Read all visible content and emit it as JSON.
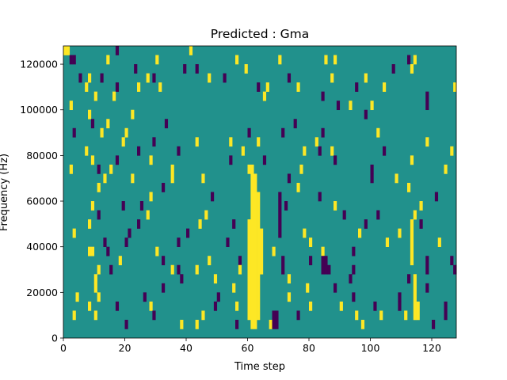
{
  "chart_data": {
    "type": "heatmap",
    "title": "Predicted : Gma",
    "xlabel": "Time step",
    "ylabel": "Frequency (Hz)",
    "xlim": [
      0,
      128
    ],
    "ylim": [
      0,
      128000
    ],
    "x_ticks": [
      0,
      20,
      40,
      60,
      80,
      100,
      120
    ],
    "y_ticks": [
      0,
      20000,
      40000,
      60000,
      80000,
      100000,
      120000
    ],
    "x_tick_labels": [
      "0",
      "20",
      "40",
      "60",
      "80",
      "100",
      "120"
    ],
    "y_tick_labels": [
      "0",
      "20000",
      "40000",
      "60000",
      "80000",
      "100000",
      "120000"
    ],
    "colormap": "viridis",
    "value_range": [
      -1,
      1
    ],
    "colors": {
      "low": "#440154",
      "mid": "#21918c",
      "high": "#fde725"
    },
    "background_value": 0,
    "freq_bin_hz": 4000,
    "cells": [
      {
        "t": 0,
        "f": 124000,
        "v": 1
      },
      {
        "t": 1,
        "f": 124000,
        "v": 1
      },
      {
        "t": 2,
        "f": 120000,
        "v": -1
      },
      {
        "t": 3,
        "f": 120000,
        "v": -1
      },
      {
        "t": 17,
        "f": 124000,
        "v": -1
      },
      {
        "t": 41,
        "f": 124000,
        "v": 1
      },
      {
        "t": 14,
        "f": 120000,
        "v": 1
      },
      {
        "t": 30,
        "f": 120000,
        "v": 1
      },
      {
        "t": 56,
        "f": 120000,
        "v": 1
      },
      {
        "t": 70,
        "f": 120000,
        "v": 1
      },
      {
        "t": 85,
        "f": 120000,
        "v": 1
      },
      {
        "t": 88,
        "f": 120000,
        "v": 1
      },
      {
        "t": 112,
        "f": 120000,
        "v": -1
      },
      {
        "t": 114,
        "f": 120000,
        "v": 1
      },
      {
        "t": 23,
        "f": 116000,
        "v": -1
      },
      {
        "t": 39,
        "f": 116000,
        "v": -1
      },
      {
        "t": 43,
        "f": 116000,
        "v": -1
      },
      {
        "t": 59,
        "f": 116000,
        "v": 1
      },
      {
        "t": 107,
        "f": 116000,
        "v": -1
      },
      {
        "t": 113,
        "f": 116000,
        "v": 1
      },
      {
        "t": 5,
        "f": 112000,
        "v": -1
      },
      {
        "t": 8,
        "f": 112000,
        "v": 1
      },
      {
        "t": 12,
        "f": 112000,
        "v": -1
      },
      {
        "t": 27,
        "f": 112000,
        "v": 1
      },
      {
        "t": 29,
        "f": 112000,
        "v": -1
      },
      {
        "t": 47,
        "f": 112000,
        "v": 1
      },
      {
        "t": 52,
        "f": 112000,
        "v": -1
      },
      {
        "t": 73,
        "f": 112000,
        "v": -1
      },
      {
        "t": 87,
        "f": 112000,
        "v": 1
      },
      {
        "t": 98,
        "f": 112000,
        "v": 1
      },
      {
        "t": 7,
        "f": 108000,
        "v": 1
      },
      {
        "t": 17,
        "f": 108000,
        "v": -1
      },
      {
        "t": 24,
        "f": 108000,
        "v": 1
      },
      {
        "t": 31,
        "f": 108000,
        "v": 1
      },
      {
        "t": 63,
        "f": 108000,
        "v": -1
      },
      {
        "t": 66,
        "f": 108000,
        "v": 1
      },
      {
        "t": 76,
        "f": 108000,
        "v": 1
      },
      {
        "t": 95,
        "f": 108000,
        "v": -1
      },
      {
        "t": 104,
        "f": 108000,
        "v": 1
      },
      {
        "t": 127,
        "f": 108000,
        "v": 1
      },
      {
        "t": 10,
        "f": 104000,
        "v": 1
      },
      {
        "t": 16,
        "f": 104000,
        "v": 1
      },
      {
        "t": 65,
        "f": 104000,
        "v": 1
      },
      {
        "t": 84,
        "f": 104000,
        "v": -1
      },
      {
        "t": 118,
        "f": 104000,
        "v": -1
      },
      {
        "t": 2,
        "f": 100000,
        "v": 1
      },
      {
        "t": 89,
        "f": 100000,
        "v": -1
      },
      {
        "t": 93,
        "f": 100000,
        "v": 1
      },
      {
        "t": 100,
        "f": 100000,
        "v": 1
      },
      {
        "t": 118,
        "f": 100000,
        "v": -1
      },
      {
        "t": 8,
        "f": 96000,
        "v": 1
      },
      {
        "t": 22,
        "f": 96000,
        "v": 1
      },
      {
        "t": 98,
        "f": 96000,
        "v": -1
      },
      {
        "t": 9,
        "f": 92000,
        "v": -1
      },
      {
        "t": 14,
        "f": 92000,
        "v": 1
      },
      {
        "t": 33,
        "f": 92000,
        "v": -1
      },
      {
        "t": 75,
        "f": 92000,
        "v": -1
      },
      {
        "t": 3,
        "f": 88000,
        "v": -1
      },
      {
        "t": 12,
        "f": 88000,
        "v": 1
      },
      {
        "t": 20,
        "f": 88000,
        "v": 1
      },
      {
        "t": 60,
        "f": 88000,
        "v": -1
      },
      {
        "t": 71,
        "f": 88000,
        "v": -1
      },
      {
        "t": 84,
        "f": 88000,
        "v": -1
      },
      {
        "t": 102,
        "f": 88000,
        "v": 1
      },
      {
        "t": 19,
        "f": 84000,
        "v": 1
      },
      {
        "t": 29,
        "f": 84000,
        "v": -1
      },
      {
        "t": 43,
        "f": 84000,
        "v": 1
      },
      {
        "t": 54,
        "f": 84000,
        "v": 1
      },
      {
        "t": 63,
        "f": 84000,
        "v": 1
      },
      {
        "t": 82,
        "f": 84000,
        "v": 1
      },
      {
        "t": 118,
        "f": 84000,
        "v": 1
      },
      {
        "t": 7,
        "f": 80000,
        "v": 1
      },
      {
        "t": 24,
        "f": 80000,
        "v": -1
      },
      {
        "t": 37,
        "f": 80000,
        "v": -1
      },
      {
        "t": 58,
        "f": 80000,
        "v": 1
      },
      {
        "t": 78,
        "f": 80000,
        "v": 1
      },
      {
        "t": 83,
        "f": 80000,
        "v": -1
      },
      {
        "t": 87,
        "f": 80000,
        "v": 1
      },
      {
        "t": 104,
        "f": 80000,
        "v": -1
      },
      {
        "t": 126,
        "f": 80000,
        "v": 1
      },
      {
        "t": 9,
        "f": 76000,
        "v": 1
      },
      {
        "t": 17,
        "f": 76000,
        "v": -1
      },
      {
        "t": 28,
        "f": 76000,
        "v": 1
      },
      {
        "t": 54,
        "f": 76000,
        "v": -1
      },
      {
        "t": 65,
        "f": 76000,
        "v": -1
      },
      {
        "t": 88,
        "f": 76000,
        "v": -1
      },
      {
        "t": 113,
        "f": 76000,
        "v": 1
      },
      {
        "t": 2,
        "f": 72000,
        "v": 1
      },
      {
        "t": 11,
        "f": 72000,
        "v": -1
      },
      {
        "t": 15,
        "f": 72000,
        "v": 1
      },
      {
        "t": 35,
        "f": 72000,
        "v": 1
      },
      {
        "t": 60,
        "f": 72000,
        "v": 1
      },
      {
        "t": 77,
        "f": 72000,
        "v": 1
      },
      {
        "t": 100,
        "f": 72000,
        "v": -1
      },
      {
        "t": 124,
        "f": 72000,
        "v": 1
      },
      {
        "t": 13,
        "f": 68000,
        "v": 1
      },
      {
        "t": 22,
        "f": 68000,
        "v": 1
      },
      {
        "t": 35,
        "f": 68000,
        "v": 1
      },
      {
        "t": 45,
        "f": 68000,
        "v": 1
      },
      {
        "t": 73,
        "f": 68000,
        "v": -1
      },
      {
        "t": 100,
        "f": 68000,
        "v": -1
      },
      {
        "t": 108,
        "f": 68000,
        "v": 1
      },
      {
        "t": 11,
        "f": 64000,
        "v": 1
      },
      {
        "t": 32,
        "f": 64000,
        "v": -1
      },
      {
        "t": 76,
        "f": 64000,
        "v": 1
      },
      {
        "t": 112,
        "f": 64000,
        "v": 1
      },
      {
        "t": 28,
        "f": 60000,
        "v": 1
      },
      {
        "t": 48,
        "f": 60000,
        "v": -1
      },
      {
        "t": 83,
        "f": 60000,
        "v": -1
      },
      {
        "t": 121,
        "f": 60000,
        "v": -1
      },
      {
        "t": 9,
        "f": 56000,
        "v": 1
      },
      {
        "t": 19,
        "f": 56000,
        "v": -1
      },
      {
        "t": 25,
        "f": 56000,
        "v": -1
      },
      {
        "t": 72,
        "f": 56000,
        "v": -1
      },
      {
        "t": 88,
        "f": 56000,
        "v": 1
      },
      {
        "t": 116,
        "f": 56000,
        "v": 1
      },
      {
        "t": 11,
        "f": 52000,
        "v": -1
      },
      {
        "t": 27,
        "f": 52000,
        "v": 1
      },
      {
        "t": 46,
        "f": 52000,
        "v": 1
      },
      {
        "t": 91,
        "f": 52000,
        "v": -1
      },
      {
        "t": 102,
        "f": 52000,
        "v": -1
      },
      {
        "t": 114,
        "f": 52000,
        "v": 1
      },
      {
        "t": 8,
        "f": 48000,
        "v": 1
      },
      {
        "t": 24,
        "f": 48000,
        "v": -1
      },
      {
        "t": 44,
        "f": 48000,
        "v": 1
      },
      {
        "t": 55,
        "f": 48000,
        "v": -1
      },
      {
        "t": 98,
        "f": 48000,
        "v": -1
      },
      {
        "t": 116,
        "f": 48000,
        "v": -1
      },
      {
        "t": 3,
        "f": 44000,
        "v": 1
      },
      {
        "t": 21,
        "f": 44000,
        "v": -1
      },
      {
        "t": 40,
        "f": 44000,
        "v": -1
      },
      {
        "t": 78,
        "f": 44000,
        "v": 1
      },
      {
        "t": 96,
        "f": 44000,
        "v": 1
      },
      {
        "t": 109,
        "f": 44000,
        "v": 1
      },
      {
        "t": 13,
        "f": 40000,
        "v": -1
      },
      {
        "t": 20,
        "f": 40000,
        "v": -1
      },
      {
        "t": 37,
        "f": 40000,
        "v": -1
      },
      {
        "t": 53,
        "f": 40000,
        "v": -1
      },
      {
        "t": 80,
        "f": 40000,
        "v": 1
      },
      {
        "t": 105,
        "f": 40000,
        "v": 1
      },
      {
        "t": 122,
        "f": 40000,
        "v": 1
      },
      {
        "t": 8,
        "f": 36000,
        "v": 1
      },
      {
        "t": 9,
        "f": 36000,
        "v": 1
      },
      {
        "t": 14,
        "f": 36000,
        "v": -1
      },
      {
        "t": 30,
        "f": 36000,
        "v": 1
      },
      {
        "t": 68,
        "f": 36000,
        "v": 1
      },
      {
        "t": 84,
        "f": 36000,
        "v": 1
      },
      {
        "t": 94,
        "f": 36000,
        "v": -1
      },
      {
        "t": 18,
        "f": 32000,
        "v": 1
      },
      {
        "t": 32,
        "f": 32000,
        "v": -1
      },
      {
        "t": 47,
        "f": 32000,
        "v": 1
      },
      {
        "t": 57,
        "f": 32000,
        "v": -1
      },
      {
        "t": 80,
        "f": 32000,
        "v": -1
      },
      {
        "t": 126,
        "f": 32000,
        "v": -1
      },
      {
        "t": 11,
        "f": 28000,
        "v": 1
      },
      {
        "t": 15,
        "f": 28000,
        "v": -1
      },
      {
        "t": 35,
        "f": 28000,
        "v": 1
      },
      {
        "t": 37,
        "f": 28000,
        "v": -1
      },
      {
        "t": 43,
        "f": 28000,
        "v": 1
      },
      {
        "t": 57,
        "f": 28000,
        "v": 1
      },
      {
        "t": 86,
        "f": 28000,
        "v": -1
      },
      {
        "t": 94,
        "f": 28000,
        "v": -1
      },
      {
        "t": 127,
        "f": 28000,
        "v": -1
      },
      {
        "t": 10,
        "f": 24000,
        "v": 1
      },
      {
        "t": 38,
        "f": 24000,
        "v": -1
      },
      {
        "t": 49,
        "f": 24000,
        "v": 1
      },
      {
        "t": 73,
        "f": 24000,
        "v": 1
      },
      {
        "t": 93,
        "f": 24000,
        "v": -1
      },
      {
        "t": 112,
        "f": 24000,
        "v": -1
      },
      {
        "t": 10,
        "f": 20000,
        "v": 1
      },
      {
        "t": 32,
        "f": 20000,
        "v": -1
      },
      {
        "t": 55,
        "f": 20000,
        "v": 1
      },
      {
        "t": 79,
        "f": 20000,
        "v": 1
      },
      {
        "t": 88,
        "f": 20000,
        "v": -1
      },
      {
        "t": 118,
        "f": 20000,
        "v": -1
      },
      {
        "t": 4,
        "f": 16000,
        "v": 1
      },
      {
        "t": 11,
        "f": 16000,
        "v": 1
      },
      {
        "t": 26,
        "f": 16000,
        "v": -1
      },
      {
        "t": 50,
        "f": 16000,
        "v": -1
      },
      {
        "t": 73,
        "f": 16000,
        "v": 1
      },
      {
        "t": 94,
        "f": 16000,
        "v": -1
      },
      {
        "t": 109,
        "f": 16000,
        "v": -1
      },
      {
        "t": 8,
        "f": 12000,
        "v": 1
      },
      {
        "t": 17,
        "f": 12000,
        "v": -1
      },
      {
        "t": 28,
        "f": 12000,
        "v": 1
      },
      {
        "t": 49,
        "f": 12000,
        "v": -1
      },
      {
        "t": 56,
        "f": 12000,
        "v": 1
      },
      {
        "t": 80,
        "f": 12000,
        "v": 1
      },
      {
        "t": 90,
        "f": 12000,
        "v": 1
      },
      {
        "t": 101,
        "f": 12000,
        "v": -1
      },
      {
        "t": 109,
        "f": 12000,
        "v": -1
      },
      {
        "t": 3,
        "f": 8000,
        "v": 1
      },
      {
        "t": 10,
        "f": 8000,
        "v": 1
      },
      {
        "t": 29,
        "f": 8000,
        "v": -1
      },
      {
        "t": 45,
        "f": 8000,
        "v": 1
      },
      {
        "t": 76,
        "f": 8000,
        "v": -1
      },
      {
        "t": 95,
        "f": 8000,
        "v": 1
      },
      {
        "t": 103,
        "f": 8000,
        "v": 1
      },
      {
        "t": 111,
        "f": 8000,
        "v": 1
      },
      {
        "t": 20,
        "f": 4000,
        "v": -1
      },
      {
        "t": 38,
        "f": 4000,
        "v": 1
      },
      {
        "t": 43,
        "f": 4000,
        "v": 1
      },
      {
        "t": 56,
        "f": 4000,
        "v": -1
      },
      {
        "t": 67,
        "f": 4000,
        "v": 1
      },
      {
        "t": 97,
        "f": 4000,
        "v": 1
      },
      {
        "t": 120,
        "f": 4000,
        "v": -1
      }
    ],
    "column_runs": [
      {
        "t": 61,
        "f_from": 4000,
        "f_to": 72000,
        "v": 1
      },
      {
        "t": 62,
        "f_from": 4000,
        "f_to": 68000,
        "v": 1
      },
      {
        "t": 63,
        "f_from": 8000,
        "f_to": 60000,
        "v": 1
      },
      {
        "t": 64,
        "f_from": 28000,
        "f_to": 44000,
        "v": 1
      },
      {
        "t": 60,
        "f_from": 8000,
        "f_to": 48000,
        "v": 1
      },
      {
        "t": 114,
        "f_from": 8000,
        "f_to": 24000,
        "v": 1
      },
      {
        "t": 113,
        "f_from": 32000,
        "f_to": 48000,
        "v": 1
      },
      {
        "t": 115,
        "f_from": 8000,
        "f_to": 12000,
        "v": 1
      },
      {
        "t": 68,
        "f_from": 4000,
        "f_to": 8000,
        "v": -1
      },
      {
        "t": 69,
        "f_from": 4000,
        "f_to": 8000,
        "v": -1
      },
      {
        "t": 70,
        "f_from": 44000,
        "f_to": 60000,
        "v": -1
      },
      {
        "t": 71,
        "f_from": 28000,
        "f_to": 32000,
        "v": -1
      },
      {
        "t": 84,
        "f_from": 28000,
        "f_to": 32000,
        "v": -1
      },
      {
        "t": 85,
        "f_from": 28000,
        "f_to": 32000,
        "v": -1
      },
      {
        "t": 118,
        "f_from": 28000,
        "f_to": 32000,
        "v": -1
      },
      {
        "t": 124,
        "f_from": 8000,
        "f_to": 12000,
        "v": -1
      }
    ]
  }
}
